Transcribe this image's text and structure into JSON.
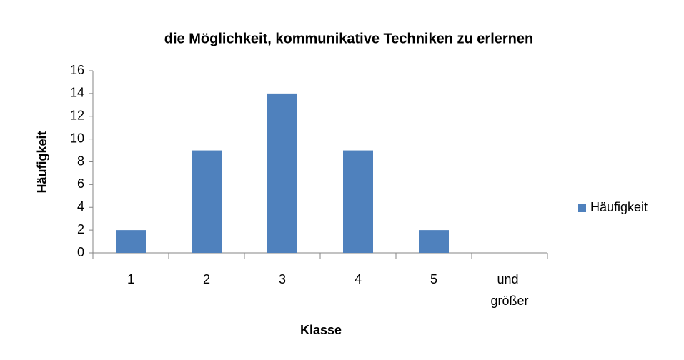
{
  "chart_data": {
    "type": "bar",
    "title": "die Möglichkeit, kommunikative Techniken zu erlernen",
    "x_label": "Klasse",
    "y_label": "Häufigkeit",
    "categories": [
      "1",
      "2",
      "3",
      "4",
      "5",
      "und größer"
    ],
    "series": [
      {
        "name": "Häufigkeit",
        "color": "#4f81bd",
        "values": [
          2,
          9,
          14,
          9,
          2,
          0
        ]
      }
    ],
    "ylim": [
      0,
      16
    ],
    "yticks": [
      0,
      2,
      4,
      6,
      8,
      10,
      12,
      14,
      16
    ],
    "grid": false,
    "legend": "right"
  }
}
